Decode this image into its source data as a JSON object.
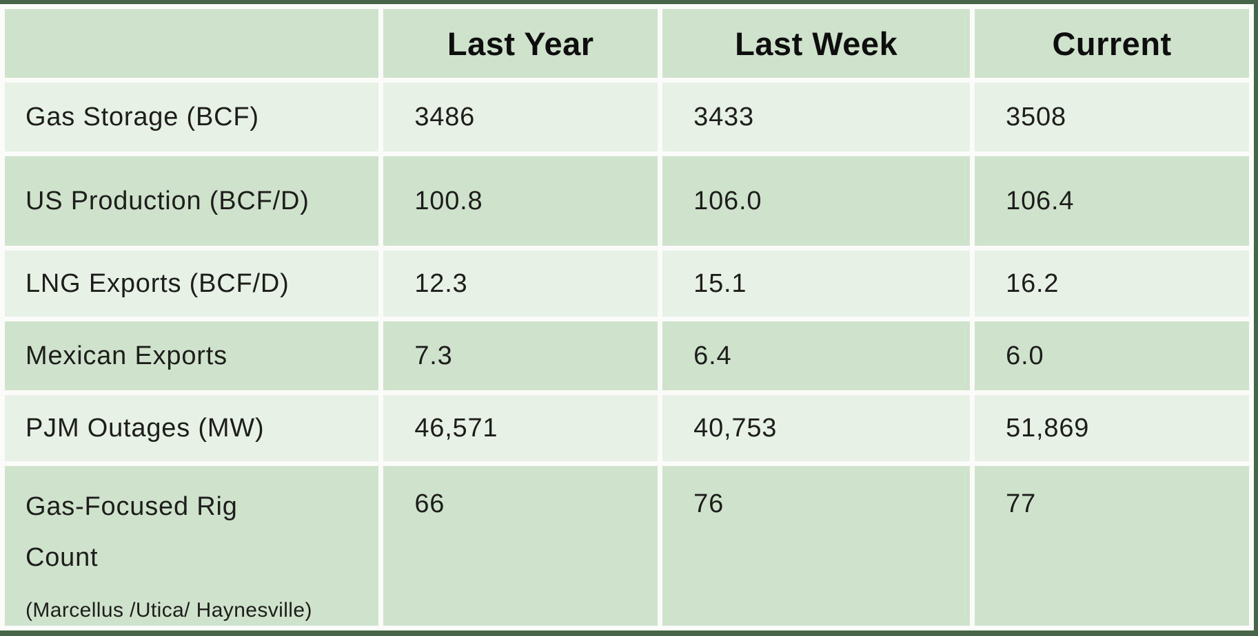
{
  "chart_data": {
    "type": "table",
    "columns": [
      "",
      "Last Year",
      "Last Week",
      "Current"
    ],
    "rows": [
      {
        "label": "Gas Storage (BCF)",
        "sublabel": "",
        "values": [
          "3486",
          "3433",
          "3508"
        ]
      },
      {
        "label": "US Production (BCF/D)",
        "sublabel": "",
        "values": [
          "100.8",
          "106.0",
          "106.4"
        ]
      },
      {
        "label": "LNG Exports (BCF/D)",
        "sublabel": "",
        "values": [
          "12.3",
          "15.1",
          "16.2"
        ]
      },
      {
        "label": "Mexican Exports",
        "sublabel": "",
        "values": [
          "7.3",
          "6.4",
          "6.0"
        ]
      },
      {
        "label": "PJM Outages (MW)",
        "sublabel": "",
        "values": [
          "46,571",
          "40,753",
          "51,869"
        ]
      },
      {
        "label": "Gas-Focused Rig Count",
        "sublabel": "(Marcellus /Utica/ Haynesville)",
        "values": [
          "66",
          "76",
          "77"
        ]
      }
    ]
  },
  "colors": {
    "row-dark": "#cfe3cc",
    "row-light": "#e7f1e5",
    "border-green": "#466549",
    "gap-white": "#fbfcf9",
    "text": "#1d1d1b"
  }
}
